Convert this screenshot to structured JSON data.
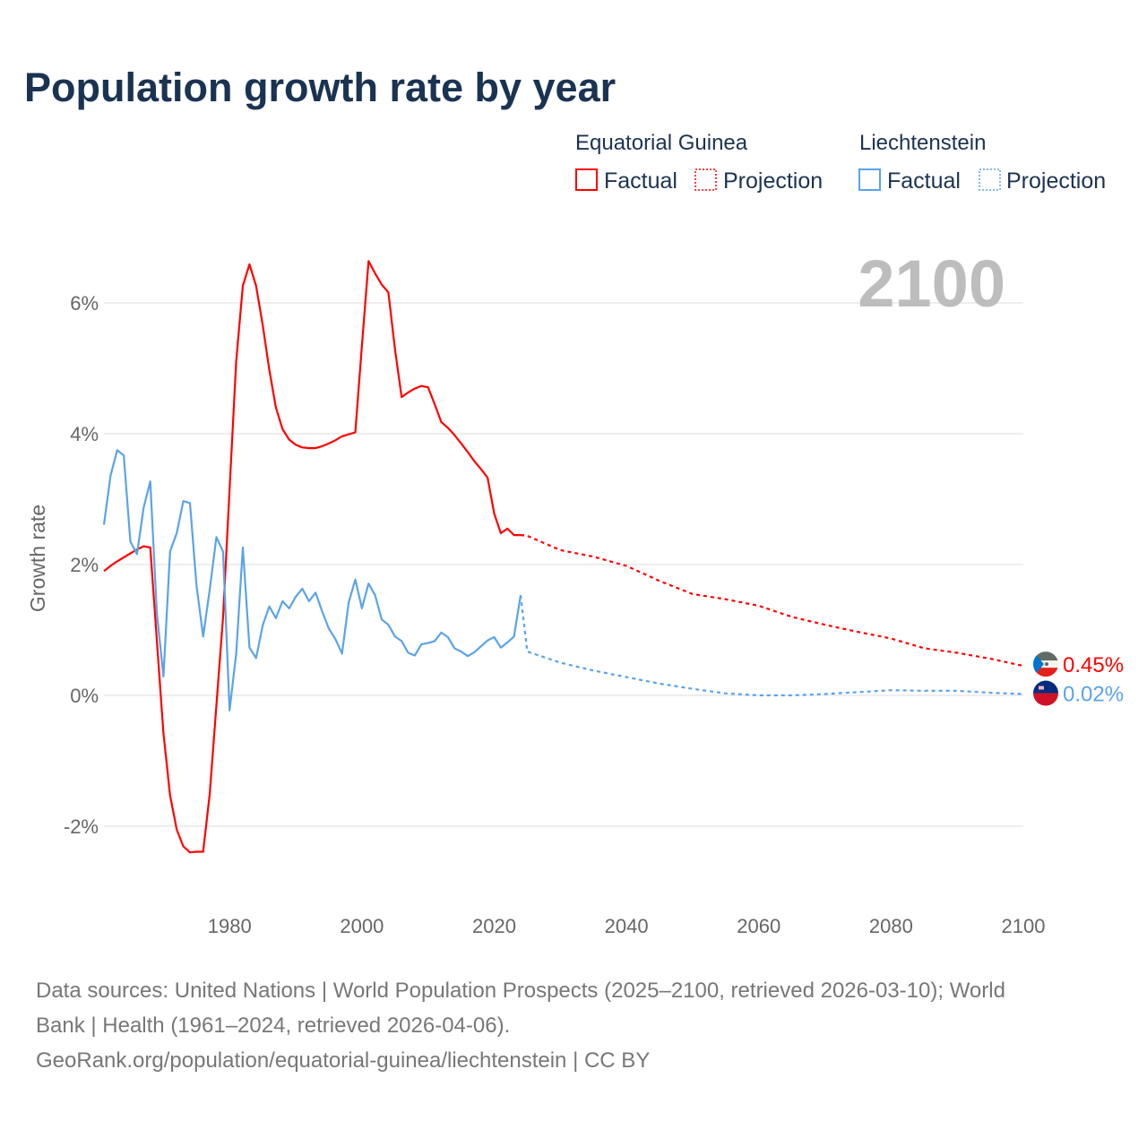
{
  "title": "Population growth rate by year",
  "legend": {
    "groups": [
      {
        "name": "Equatorial Guinea",
        "color": "#ff0000",
        "factual": "Factual",
        "projection": "Projection"
      },
      {
        "name": "Liechtenstein",
        "color": "#5ba3e8",
        "factual": "Factual",
        "projection": "Projection"
      }
    ]
  },
  "current_year_label": "2100",
  "chart_data": {
    "type": "line",
    "title": "Population growth rate by year",
    "xlabel": "",
    "ylabel": "Growth rate",
    "xlim": [
      1961,
      2100
    ],
    "ylim": [
      -3.2,
      6.9
    ],
    "x_ticks": [
      {
        "value": 1980,
        "label": "1980"
      },
      {
        "value": 2000,
        "label": "2000"
      },
      {
        "value": 2020,
        "label": "2020"
      },
      {
        "value": 2040,
        "label": "2040"
      },
      {
        "value": 2060,
        "label": "2060"
      },
      {
        "value": 2080,
        "label": "2080"
      },
      {
        "value": 2100,
        "label": "2100"
      }
    ],
    "y_ticks": [
      {
        "value": -2,
        "label": "-2%"
      },
      {
        "value": 0,
        "label": "0%"
      },
      {
        "value": 2,
        "label": "2%"
      },
      {
        "value": 4,
        "label": "4%"
      },
      {
        "value": 6,
        "label": "6%"
      }
    ],
    "grid": true,
    "legend_placement": "top-right",
    "series": [
      {
        "name": "Equatorial Guinea",
        "color": "#ff0000",
        "end_label": "0.45%",
        "factual": {
          "start_year": 1961,
          "values": [
            1.9,
            1.98,
            2.05,
            2.11,
            2.17,
            2.23,
            2.28,
            2.26,
            0.83,
            -0.58,
            -1.53,
            -2.05,
            -2.31,
            -2.4,
            -2.39,
            -2.39,
            -1.5,
            -0.15,
            1.19,
            3.15,
            5.11,
            6.26,
            6.59,
            6.26,
            5.66,
            4.98,
            4.4,
            4.07,
            3.91,
            3.83,
            3.79,
            3.78,
            3.78,
            3.81,
            3.85,
            3.9,
            3.96,
            3.99,
            4.02,
            5.35,
            6.64,
            6.45,
            6.28,
            6.16,
            5.29,
            4.56,
            4.63,
            4.69,
            4.73,
            4.71,
            4.45,
            4.18,
            4.09,
            3.98,
            3.85,
            3.72,
            3.58,
            3.46,
            3.33,
            2.78,
            2.48,
            2.55,
            2.45,
            2.45
          ]
        },
        "projection": {
          "years": [
            2024,
            2025,
            2030,
            2035,
            2040,
            2045,
            2050,
            2055,
            2060,
            2065,
            2070,
            2075,
            2080,
            2085,
            2090,
            2095,
            2100
          ],
          "values": [
            2.45,
            2.44,
            2.22,
            2.12,
            1.98,
            1.75,
            1.55,
            1.47,
            1.37,
            1.2,
            1.08,
            0.97,
            0.87,
            0.72,
            0.65,
            0.56,
            0.45
          ]
        }
      },
      {
        "name": "Liechtenstein",
        "color": "#5ba3e8",
        "end_label": "0.02%",
        "factual": {
          "start_year": 1961,
          "values": [
            2.61,
            3.36,
            3.75,
            3.67,
            2.35,
            2.16,
            2.87,
            3.27,
            1.25,
            0.29,
            2.2,
            2.48,
            2.97,
            2.94,
            1.68,
            0.9,
            1.62,
            2.42,
            2.2,
            -0.23,
            0.64,
            2.26,
            0.73,
            0.57,
            1.07,
            1.36,
            1.18,
            1.44,
            1.33,
            1.51,
            1.63,
            1.44,
            1.57,
            1.28,
            1.02,
            0.86,
            0.64,
            1.42,
            1.77,
            1.33,
            1.71,
            1.53,
            1.16,
            1.08,
            0.9,
            0.83,
            0.65,
            0.61,
            0.78,
            0.8,
            0.83,
            0.96,
            0.89,
            0.72,
            0.67,
            0.6,
            0.66,
            0.75,
            0.84,
            0.89,
            0.73,
            0.81,
            0.9,
            1.53
          ]
        },
        "projection": {
          "years": [
            2024,
            2025,
            2030,
            2035,
            2040,
            2045,
            2050,
            2055,
            2060,
            2065,
            2070,
            2075,
            2080,
            2085,
            2090,
            2095,
            2100
          ],
          "values": [
            1.53,
            0.67,
            0.5,
            0.38,
            0.28,
            0.18,
            0.1,
            0.03,
            0.0,
            0.0,
            0.02,
            0.05,
            0.08,
            0.07,
            0.07,
            0.04,
            0.02
          ]
        }
      }
    ]
  },
  "footer": {
    "line1": "Data sources: United Nations | World Population Prospects (2025–2100, retrieved 2026-03-10); World",
    "line2": "Bank | Health (1961–2024, retrieved 2026-04-06).",
    "line3": "GeoRank.org/population/equatorial-guinea/liechtenstein | CC BY"
  }
}
